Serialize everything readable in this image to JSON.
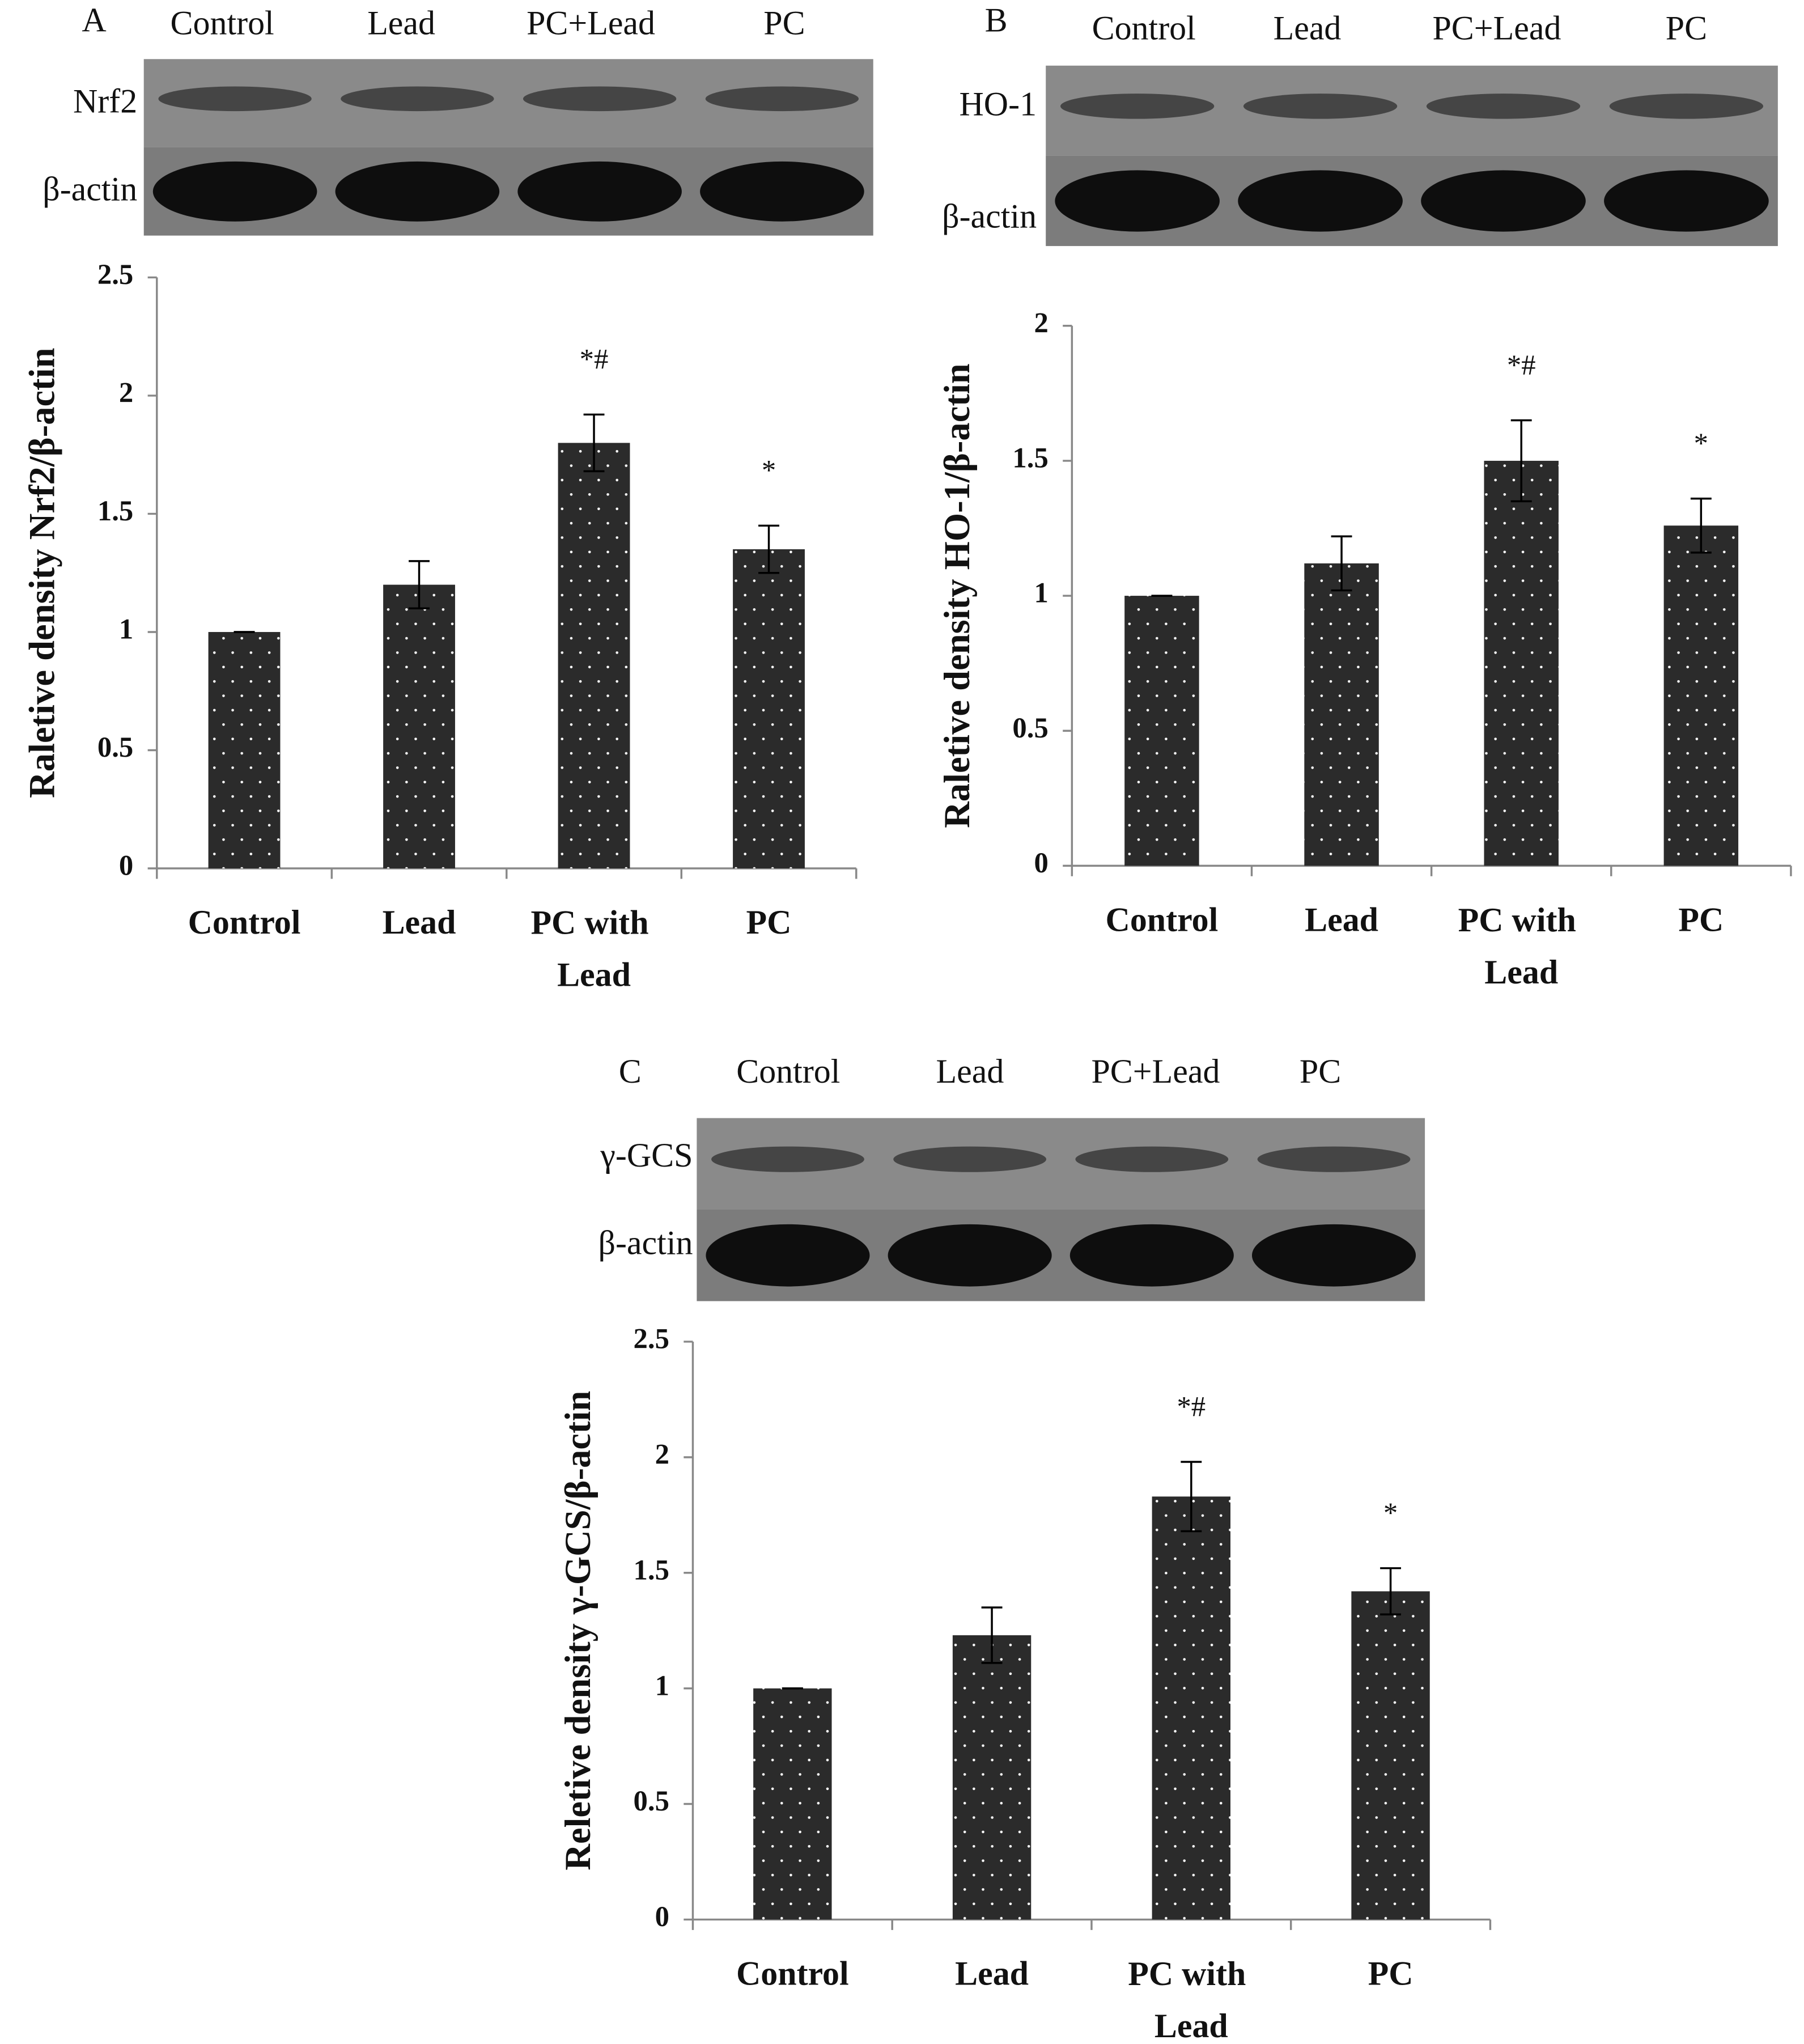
{
  "chart_data": [
    {
      "type": "bar",
      "panel": "A",
      "blot": {
        "lanes": [
          "Control",
          "Lead",
          "PC+Lead",
          "PC"
        ],
        "rows": [
          "Nrf2",
          "β-actin"
        ]
      },
      "y_label": "Raletive density Nrf2/β-actin",
      "categories": [
        "Control",
        "Lead",
        "PC with Lead",
        "PC"
      ],
      "values": [
        1,
        1.2,
        1.8,
        1.35
      ],
      "errors": [
        0,
        0.1,
        0.12,
        0.1
      ],
      "significance": [
        null,
        null,
        "*#",
        "*"
      ],
      "color": "#2b2b2b",
      "ylim": [
        0,
        2.5
      ],
      "yticks": [
        0,
        0.5,
        1,
        1.5,
        2,
        2.5
      ]
    },
    {
      "type": "bar",
      "panel": "B",
      "blot": {
        "lanes": [
          "Control",
          "Lead",
          "PC+Lead",
          "PC"
        ],
        "rows": [
          "HO-1",
          "β-actin"
        ]
      },
      "y_label": "Raletive density HO-1/β-actin",
      "categories": [
        "Control",
        "Lead",
        "PC with Lead",
        "PC"
      ],
      "values": [
        1,
        1.12,
        1.5,
        1.26
      ],
      "errors": [
        0,
        0.1,
        0.15,
        0.1
      ],
      "significance": [
        null,
        null,
        "*#",
        "*"
      ],
      "color": "#2b2b2b",
      "ylim": [
        0,
        2
      ],
      "yticks": [
        0,
        0.5,
        1,
        1.5,
        2
      ]
    },
    {
      "type": "bar",
      "panel": "C",
      "blot": {
        "lanes": [
          "Control",
          "Lead",
          "PC+Lead",
          "PC"
        ],
        "rows": [
          "γ-GCS",
          "β-actin"
        ]
      },
      "y_label": "Reletive density γ-GCS/β-actin",
      "categories": [
        "Control",
        "Lead",
        "PC with Lead",
        "PC"
      ],
      "values": [
        1,
        1.23,
        1.83,
        1.42
      ],
      "errors": [
        0,
        0.12,
        0.15,
        0.1
      ],
      "significance": [
        null,
        null,
        "*#",
        "*"
      ],
      "color": "#2b2b2b",
      "ylim": [
        0,
        2.5
      ],
      "yticks": [
        0,
        0.5,
        1,
        1.5,
        2,
        2.5
      ]
    }
  ]
}
